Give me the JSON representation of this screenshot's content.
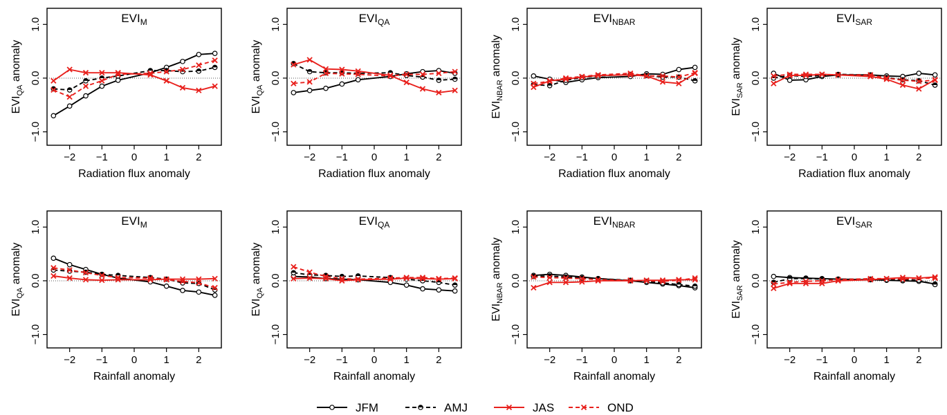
{
  "colors": {
    "black": "#000000",
    "red": "#e8201c"
  },
  "legend": {
    "placement": "bottom-center",
    "items": [
      {
        "label": "JFM",
        "color": "#000000",
        "dash": "solid",
        "marker": "circle"
      },
      {
        "label": "AMJ",
        "color": "#000000",
        "dash": "dashed",
        "marker": "half-circle"
      },
      {
        "label": "JAS",
        "color": "#e8201c",
        "dash": "solid",
        "marker": "cross"
      },
      {
        "label": "OND",
        "color": "#e8201c",
        "dash": "dashed",
        "marker": "cross"
      }
    ]
  },
  "chart_data": [
    {
      "type": "line",
      "title": "EVI",
      "title_sub": "M",
      "xlabel": "Radiation flux anomaly",
      "ylabel": "EVI",
      "ylabel_sub": "QA",
      "ylabel_suffix": " anomaly",
      "xlim": [
        -2.7,
        2.7
      ],
      "ylim": [
        -1.25,
        1.3
      ],
      "xticks": [
        -2,
        -1,
        0,
        1,
        2
      ],
      "yticks": [
        -1.0,
        0.0,
        1.0
      ],
      "x": [
        -2.5,
        -2,
        -1.5,
        -1,
        -0.5,
        0.5,
        1,
        1.5,
        2,
        2.5
      ],
      "series": [
        {
          "name": "JFM",
          "values": [
            -0.7,
            -0.52,
            -0.33,
            -0.15,
            -0.04,
            0.1,
            0.2,
            0.31,
            0.44,
            0.46
          ]
        },
        {
          "name": "AMJ",
          "values": [
            -0.2,
            -0.22,
            -0.05,
            0.0,
            0.04,
            0.14,
            0.14,
            0.12,
            0.13,
            0.2
          ]
        },
        {
          "name": "JAS",
          "values": [
            -0.05,
            0.16,
            0.1,
            0.1,
            0.1,
            0.06,
            -0.05,
            -0.18,
            -0.23,
            -0.15
          ]
        },
        {
          "name": "OND",
          "values": [
            -0.22,
            -0.35,
            -0.15,
            -0.05,
            0.07,
            0.09,
            0.12,
            0.16,
            0.24,
            0.33
          ]
        }
      ]
    },
    {
      "type": "line",
      "title": "EVI",
      "title_sub": "QA",
      "xlabel": "Radiation flux anomaly",
      "ylabel": "EVI",
      "ylabel_sub": "QA",
      "ylabel_suffix": " anomaly",
      "xlim": [
        -2.7,
        2.7
      ],
      "ylim": [
        -1.25,
        1.3
      ],
      "xticks": [
        -2,
        -1,
        0,
        1,
        2
      ],
      "yticks": [
        -1.0,
        0.0,
        1.0
      ],
      "x": [
        -2.5,
        -2,
        -1.5,
        -1,
        -0.5,
        0.5,
        1,
        1.5,
        2,
        2.5
      ],
      "series": [
        {
          "name": "JFM",
          "values": [
            -0.27,
            -0.23,
            -0.19,
            -0.11,
            -0.03,
            0.03,
            0.08,
            0.12,
            0.14,
            0.09
          ]
        },
        {
          "name": "AMJ",
          "values": [
            0.27,
            0.12,
            0.1,
            0.1,
            0.09,
            0.1,
            0.05,
            0.02,
            -0.04,
            -0.02
          ]
        },
        {
          "name": "JAS",
          "values": [
            0.25,
            0.34,
            0.17,
            0.16,
            0.13,
            0.05,
            -0.08,
            -0.2,
            -0.27,
            -0.23
          ]
        },
        {
          "name": "OND",
          "values": [
            -0.1,
            -0.07,
            0.09,
            0.08,
            0.07,
            0.04,
            0.07,
            0.07,
            0.09,
            0.12
          ]
        }
      ]
    },
    {
      "type": "line",
      "title": "EVI",
      "title_sub": "NBAR",
      "xlabel": "Radiation flux anomaly",
      "ylabel": "EVI",
      "ylabel_sub": "NBAR",
      "ylabel_suffix": " anomaly",
      "xlim": [
        -2.7,
        2.7
      ],
      "ylim": [
        -1.25,
        1.3
      ],
      "xticks": [
        -2,
        -1,
        0,
        1,
        2
      ],
      "yticks": [
        -1.0,
        0.0,
        1.0
      ],
      "x": [
        -2.5,
        -2,
        -1.5,
        -1,
        -0.5,
        0.5,
        1,
        1.5,
        2,
        2.5
      ],
      "series": [
        {
          "name": "JFM",
          "values": [
            0.04,
            -0.02,
            -0.08,
            -0.03,
            0.01,
            0.03,
            0.08,
            0.07,
            0.16,
            0.2
          ]
        },
        {
          "name": "AMJ",
          "values": [
            -0.12,
            -0.14,
            -0.04,
            0.01,
            0.04,
            0.07,
            0.05,
            0.02,
            0.02,
            -0.05
          ]
        },
        {
          "name": "JAS",
          "values": [
            -0.17,
            -0.05,
            -0.02,
            0.02,
            0.05,
            0.06,
            0.04,
            -0.07,
            -0.1,
            0.09
          ]
        },
        {
          "name": "OND",
          "values": [
            -0.1,
            -0.06,
            0.0,
            0.03,
            0.06,
            0.09,
            0.04,
            0.04,
            0.02,
            0.1
          ]
        }
      ]
    },
    {
      "type": "line",
      "title": "EVI",
      "title_sub": "SAR",
      "xlabel": "Radiation flux anomaly",
      "ylabel": "EVI",
      "ylabel_sub": "SAR",
      "ylabel_suffix": " anomaly",
      "xlim": [
        -2.7,
        2.7
      ],
      "ylim": [
        -1.25,
        1.3
      ],
      "xticks": [
        -2,
        -1,
        0,
        1,
        2
      ],
      "yticks": [
        -1.0,
        0.0,
        1.0
      ],
      "x": [
        -2.5,
        -2,
        -1.5,
        -1,
        -0.5,
        0.5,
        1,
        1.5,
        2,
        2.5
      ],
      "series": [
        {
          "name": "JFM",
          "values": [
            0.09,
            -0.04,
            -0.03,
            0.03,
            0.06,
            0.06,
            0.04,
            0.03,
            0.09,
            0.06
          ]
        },
        {
          "name": "AMJ",
          "values": [
            0.0,
            0.05,
            0.03,
            0.05,
            0.07,
            0.06,
            0.01,
            -0.03,
            -0.05,
            -0.13
          ]
        },
        {
          "name": "JAS",
          "values": [
            -0.1,
            0.05,
            0.05,
            0.07,
            0.06,
            0.03,
            -0.02,
            -0.13,
            -0.2,
            -0.03
          ]
        },
        {
          "name": "OND",
          "values": [
            0.04,
            0.07,
            0.07,
            0.07,
            0.06,
            0.06,
            0.0,
            -0.04,
            -0.06,
            -0.04
          ]
        }
      ]
    },
    {
      "type": "line",
      "title": "EVI",
      "title_sub": "M",
      "xlabel": "Rainfall anomaly",
      "ylabel": "EVI",
      "ylabel_sub": "QA",
      "ylabel_suffix": " anomaly",
      "xlim": [
        -2.7,
        2.7
      ],
      "ylim": [
        -1.25,
        1.3
      ],
      "xticks": [
        -2,
        -1,
        0,
        1,
        2
      ],
      "yticks": [
        -1.0,
        0.0,
        1.0
      ],
      "x": [
        -2.5,
        -2,
        -1.5,
        -1,
        -0.5,
        0.5,
        1,
        1.5,
        2,
        2.5
      ],
      "series": [
        {
          "name": "JFM",
          "values": [
            0.42,
            0.3,
            0.21,
            0.12,
            0.05,
            -0.02,
            -0.1,
            -0.18,
            -0.21,
            -0.27
          ]
        },
        {
          "name": "AMJ",
          "values": [
            0.2,
            0.18,
            0.16,
            0.12,
            0.1,
            0.06,
            0.03,
            -0.04,
            -0.05,
            -0.17
          ]
        },
        {
          "name": "JAS",
          "values": [
            0.09,
            0.05,
            0.02,
            0.01,
            0.02,
            0.02,
            0.03,
            0.03,
            0.03,
            0.04
          ]
        },
        {
          "name": "OND",
          "values": [
            0.24,
            0.2,
            0.15,
            0.1,
            0.06,
            0.05,
            0.02,
            -0.01,
            -0.04,
            -0.13
          ]
        }
      ]
    },
    {
      "type": "line",
      "title": "EVI",
      "title_sub": "QA",
      "xlabel": "Rainfall anomaly",
      "ylabel": "EVI",
      "ylabel_sub": "QA",
      "ylabel_suffix": " anomaly",
      "xlim": [
        -2.7,
        2.7
      ],
      "ylim": [
        -1.25,
        1.3
      ],
      "xticks": [
        -2,
        -1,
        0,
        1,
        2
      ],
      "yticks": [
        -1.0,
        0.0,
        1.0
      ],
      "x": [
        -2.5,
        -2,
        -1.5,
        -1,
        -0.5,
        0.5,
        1,
        1.5,
        2,
        2.5
      ],
      "series": [
        {
          "name": "JFM",
          "values": [
            0.08,
            0.07,
            0.04,
            0.03,
            0.02,
            -0.03,
            -0.08,
            -0.15,
            -0.17,
            -0.19
          ]
        },
        {
          "name": "AMJ",
          "values": [
            0.15,
            0.11,
            0.1,
            0.08,
            0.09,
            0.06,
            0.03,
            0.0,
            -0.03,
            -0.08
          ]
        },
        {
          "name": "JAS",
          "values": [
            0.04,
            0.05,
            0.04,
            0.0,
            0.02,
            0.03,
            0.05,
            0.04,
            0.03,
            0.04
          ]
        },
        {
          "name": "OND",
          "values": [
            0.26,
            0.16,
            0.08,
            0.04,
            0.03,
            0.05,
            0.06,
            0.06,
            0.04,
            0.05
          ]
        }
      ]
    },
    {
      "type": "line",
      "title": "EVI",
      "title_sub": "NBAR",
      "xlabel": "Rainfall anomaly",
      "ylabel": "EVI",
      "ylabel_sub": "NBAR",
      "ylabel_suffix": " anomaly",
      "xlim": [
        -2.7,
        2.7
      ],
      "ylim": [
        -1.25,
        1.3
      ],
      "xticks": [
        -2,
        -1,
        0,
        1,
        2
      ],
      "yticks": [
        -1.0,
        0.0,
        1.0
      ],
      "x": [
        -2.5,
        -2,
        -1.5,
        -1,
        -0.5,
        0.5,
        1,
        1.5,
        2,
        2.5
      ],
      "series": [
        {
          "name": "JFM",
          "values": [
            0.1,
            0.12,
            0.1,
            0.07,
            0.04,
            0.0,
            -0.03,
            -0.06,
            -0.09,
            -0.13
          ]
        },
        {
          "name": "AMJ",
          "values": [
            0.08,
            0.09,
            0.07,
            0.05,
            0.04,
            0.01,
            -0.01,
            -0.04,
            -0.07,
            -0.1
          ]
        },
        {
          "name": "JAS",
          "values": [
            -0.13,
            -0.03,
            -0.03,
            -0.02,
            0.0,
            0.0,
            0.01,
            0.01,
            0.02,
            0.02
          ]
        },
        {
          "name": "OND",
          "values": [
            0.07,
            0.06,
            0.05,
            0.04,
            0.02,
            0.01,
            0.0,
            -0.01,
            0.01,
            0.05
          ]
        }
      ]
    },
    {
      "type": "line",
      "title": "EVI",
      "title_sub": "SAR",
      "xlabel": "Rainfall anomaly",
      "ylabel": "EVI",
      "ylabel_sub": "SAR",
      "ylabel_suffix": " anomaly",
      "xlim": [
        -2.7,
        2.7
      ],
      "ylim": [
        -1.25,
        1.3
      ],
      "xticks": [
        -2,
        -1,
        0,
        1,
        2
      ],
      "yticks": [
        -1.0,
        0.0,
        1.0
      ],
      "x": [
        -2.5,
        -2,
        -1.5,
        -1,
        -0.5,
        0.5,
        1,
        1.5,
        2,
        2.5
      ],
      "series": [
        {
          "name": "JFM",
          "values": [
            0.08,
            0.06,
            0.05,
            0.04,
            0.03,
            0.02,
            0.01,
            0.0,
            -0.01,
            -0.06
          ]
        },
        {
          "name": "AMJ",
          "values": [
            -0.03,
            0.04,
            0.04,
            0.03,
            0.03,
            0.03,
            0.02,
            0.02,
            0.01,
            -0.07
          ]
        },
        {
          "name": "JAS",
          "values": [
            -0.14,
            -0.05,
            -0.05,
            -0.05,
            0.0,
            0.02,
            0.04,
            0.06,
            0.05,
            0.07
          ]
        },
        {
          "name": "OND",
          "values": [
            -0.06,
            -0.03,
            -0.01,
            0.0,
            0.02,
            0.04,
            0.04,
            0.03,
            0.05,
            0.05
          ]
        }
      ]
    }
  ]
}
